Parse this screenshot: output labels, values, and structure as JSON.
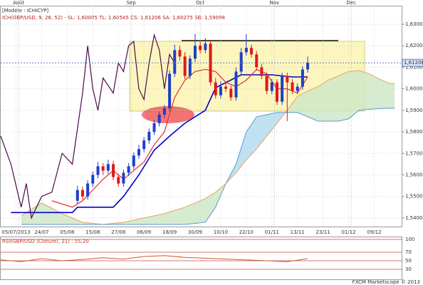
{
  "chart_data": {
    "type": "candlestick",
    "title": "[Modèle : ICHICYP]",
    "subtitle": "ICH(GBP/USD, 9, 26, 52) - SL: 1,60005  TL: 1,60545  CS: 1,61206  SA: 1,60275  SB: 1,59098",
    "footer": "FXCM Marketscope © 2013",
    "x": [
      15,
      16,
      17,
      18,
      19,
      20,
      21,
      22,
      23,
      24,
      25,
      26,
      27,
      28,
      29,
      30,
      31,
      32,
      33,
      34,
      35,
      36,
      37,
      38,
      39,
      40,
      41,
      42,
      43,
      44,
      45,
      46,
      47,
      48,
      49,
      50,
      51,
      52,
      53,
      54,
      55,
      56,
      57,
      58,
      59,
      60
    ],
    "open": [
      1.548,
      1.553,
      1.55,
      1.556,
      1.56,
      1.564,
      1.562,
      1.565,
      1.559,
      1.556,
      1.561,
      1.564,
      1.569,
      1.572,
      1.576,
      1.58,
      1.584,
      1.588,
      1.591,
      1.607,
      1.618,
      1.615,
      1.606,
      1.614,
      1.62,
      1.618,
      1.621,
      1.603,
      1.597,
      1.601,
      1.6,
      1.596,
      1.608,
      1.617,
      1.619,
      1.616,
      1.61,
      1.606,
      1.599,
      1.603,
      1.594,
      1.606,
      1.603,
      1.599,
      1.601,
      1.609
    ],
    "high": [
      1.555,
      1.5545,
      1.5575,
      1.5615,
      1.566,
      1.5655,
      1.567,
      1.5665,
      1.5605,
      1.5625,
      1.5655,
      1.5705,
      1.574,
      1.5775,
      1.5815,
      1.5855,
      1.5895,
      1.5925,
      1.6085,
      1.6205,
      1.62,
      1.617,
      1.6155,
      1.6255,
      1.622,
      1.6235,
      1.6225,
      1.605,
      1.6035,
      1.603,
      1.6015,
      1.61,
      1.619,
      1.6255,
      1.6205,
      1.6175,
      1.6115,
      1.6075,
      1.6045,
      1.6045,
      1.6075,
      1.6075,
      1.6045,
      1.6025,
      1.6105,
      1.615
    ],
    "low": [
      1.5465,
      1.5485,
      1.5485,
      1.5545,
      1.5585,
      1.56,
      1.5605,
      1.5575,
      1.5545,
      1.5545,
      1.5595,
      1.5625,
      1.5675,
      1.5705,
      1.5745,
      1.5785,
      1.5825,
      1.5865,
      1.5895,
      1.6055,
      1.613,
      1.6045,
      1.6045,
      1.6125,
      1.6165,
      1.6165,
      1.6015,
      1.5955,
      1.5955,
      1.5985,
      1.5945,
      1.5945,
      1.6065,
      1.6155,
      1.6145,
      1.6085,
      1.6045,
      1.5975,
      1.5975,
      1.5925,
      1.5925,
      1.585,
      1.5975,
      1.5975,
      1.5995,
      1.6075
    ],
    "close": [
      1.553,
      1.55,
      1.556,
      1.56,
      1.564,
      1.562,
      1.565,
      1.559,
      1.556,
      1.561,
      1.564,
      1.569,
      1.572,
      1.576,
      1.58,
      1.584,
      1.588,
      1.591,
      1.607,
      1.618,
      1.615,
      1.606,
      1.614,
      1.62,
      1.618,
      1.621,
      1.603,
      1.597,
      1.601,
      1.6,
      1.596,
      1.608,
      1.617,
      1.619,
      1.616,
      1.61,
      1.606,
      1.599,
      1.603,
      1.594,
      1.606,
      1.603,
      1.599,
      1.601,
      1.609,
      1.6121
    ],
    "up_color": "#1f3fc8",
    "down_color": "#e01818",
    "lines": [
      {
        "color": "#0000c8",
        "x": [
          2,
          14,
          15,
          22,
          24,
          27,
          30,
          33,
          36,
          40,
          42,
          47,
          53,
          57,
          60
        ],
        "values": [
          1.5425,
          1.5425,
          1.545,
          1.545,
          1.55,
          1.56,
          1.5715,
          1.578,
          1.584,
          1.59,
          1.6005,
          1.6065,
          1.6065,
          1.6055,
          1.6055
        ]
      },
      {
        "color": "#e03030",
        "x": [
          10,
          14,
          16,
          18,
          20,
          22,
          24,
          26,
          28,
          30,
          32,
          34,
          36,
          38,
          40,
          42,
          44,
          46,
          48,
          50,
          52,
          54,
          56,
          58,
          60
        ],
        "values": [
          1.548,
          1.545,
          1.548,
          1.553,
          1.558,
          1.562,
          1.558,
          1.562,
          1.566,
          1.574,
          1.58,
          1.596,
          1.604,
          1.608,
          1.609,
          1.608,
          1.603,
          1.601,
          1.604,
          1.609,
          1.607,
          1.6,
          1.6,
          1.598,
          1.6055
        ]
      },
      {
        "color": "#4a0a4a",
        "x": [
          0,
          2,
          4,
          5,
          6,
          8,
          10,
          12,
          14,
          16,
          17,
          18,
          19,
          20,
          22,
          23,
          24,
          25,
          26,
          27,
          28,
          29,
          30,
          31,
          32,
          33,
          34
        ],
        "values": [
          1.578,
          1.565,
          1.545,
          1.556,
          1.54,
          1.55,
          1.552,
          1.57,
          1.565,
          1.598,
          1.62,
          1.6,
          1.59,
          1.605,
          1.598,
          1.612,
          1.608,
          1.62,
          1.622,
          1.6,
          1.595,
          1.612,
          1.625,
          1.618,
          1.6,
          1.616,
          1.612
        ]
      }
    ],
    "cloud": {
      "x": [
        4,
        8,
        12,
        16,
        20,
        24,
        28,
        32,
        36,
        40,
        42,
        44,
        46,
        48,
        50,
        52,
        54,
        56,
        58,
        60,
        62,
        64,
        66,
        68,
        70,
        72,
        74,
        76,
        77
      ],
      "senkou_a": [
        1.541,
        1.547,
        1.542,
        1.538,
        1.537,
        1.538,
        1.54,
        1.542,
        1.545,
        1.549,
        1.552,
        1.556,
        1.561,
        1.567,
        1.572,
        1.578,
        1.584,
        1.59,
        1.5965,
        1.599,
        1.601,
        1.604,
        1.606,
        1.608,
        1.6085,
        1.607,
        1.6045,
        1.6025,
        1.6025
      ],
      "senkou_b": [
        1.537,
        1.537,
        1.537,
        1.537,
        1.537,
        1.537,
        1.537,
        1.537,
        1.537,
        1.538,
        1.545,
        1.556,
        1.565,
        1.58,
        1.587,
        1.588,
        1.589,
        1.589,
        1.589,
        1.587,
        1.585,
        1.585,
        1.585,
        1.586,
        1.59,
        1.5905,
        1.5908,
        1.591,
        1.591
      ],
      "a_color": "#f0a060",
      "b_color": "#5a9ad0",
      "up_fill": "#cfe8c8",
      "down_fill": "#b4dcf0"
    },
    "xlim": [
      0,
      78.5
    ],
    "xticks": [
      {
        "value": 3,
        "label": "05/07/2013"
      },
      {
        "value": 8,
        "label": "24/07"
      },
      {
        "value": 13,
        "label": "05/08"
      },
      {
        "value": 18,
        "label": "15/08"
      },
      {
        "value": 23,
        "label": "27/08"
      },
      {
        "value": 28,
        "label": "06/09"
      },
      {
        "value": 33,
        "label": "18/09"
      },
      {
        "value": 38,
        "label": "30/09"
      },
      {
        "value": 43,
        "label": "10/10"
      },
      {
        "value": 48,
        "label": "22/10"
      },
      {
        "value": 53,
        "label": "01/11"
      },
      {
        "value": 58,
        "label": "13/11"
      },
      {
        "value": 63,
        "label": "23/11"
      },
      {
        "value": 68,
        "label": "01/12"
      },
      {
        "value": 73,
        "label": "09/12"
      }
    ],
    "top_xticks": [
      {
        "value": 3.5,
        "label": "Août"
      },
      {
        "value": 25.5,
        "label": "Sep"
      },
      {
        "value": 39,
        "label": "Oct"
      },
      {
        "value": 53.5,
        "label": "Nov"
      },
      {
        "value": 68.5,
        "label": "Dec"
      }
    ],
    "ylim": [
      1.536,
      1.6386
    ],
    "yticks": [
      {
        "value": 1.63,
        "label": "1,6300"
      },
      {
        "value": 1.62,
        "label": "1,6200"
      },
      {
        "value": 1.61,
        "label": "1,6100"
      },
      {
        "value": 1.6,
        "label": "1,6000"
      },
      {
        "value": 1.59,
        "label": "1,5900"
      },
      {
        "value": 1.58,
        "label": "1,5800"
      },
      {
        "value": 1.57,
        "label": "1,5700"
      },
      {
        "value": 1.56,
        "label": "1,5600"
      },
      {
        "value": 1.55,
        "label": "1,5500"
      },
      {
        "value": 1.54,
        "label": "1,5400"
      }
    ],
    "last_price": {
      "value": 1.61206,
      "label": "1,61206"
    },
    "grid": true,
    "rsi": {
      "title": "RSI(GBP/USD (Cloture), 21) : 55,20",
      "color": "#c06030",
      "x": [
        0,
        4,
        8,
        12,
        16,
        20,
        24,
        28,
        32,
        36,
        40,
        44,
        48,
        52,
        56,
        60
      ],
      "values": [
        52,
        48,
        55,
        50,
        53,
        57,
        54,
        60,
        62,
        58,
        56,
        54,
        52,
        50,
        48,
        55
      ],
      "ylim": [
        20,
        100
      ],
      "yticks": [
        100,
        70,
        50,
        30
      ],
      "level_color": "#d04040"
    }
  }
}
